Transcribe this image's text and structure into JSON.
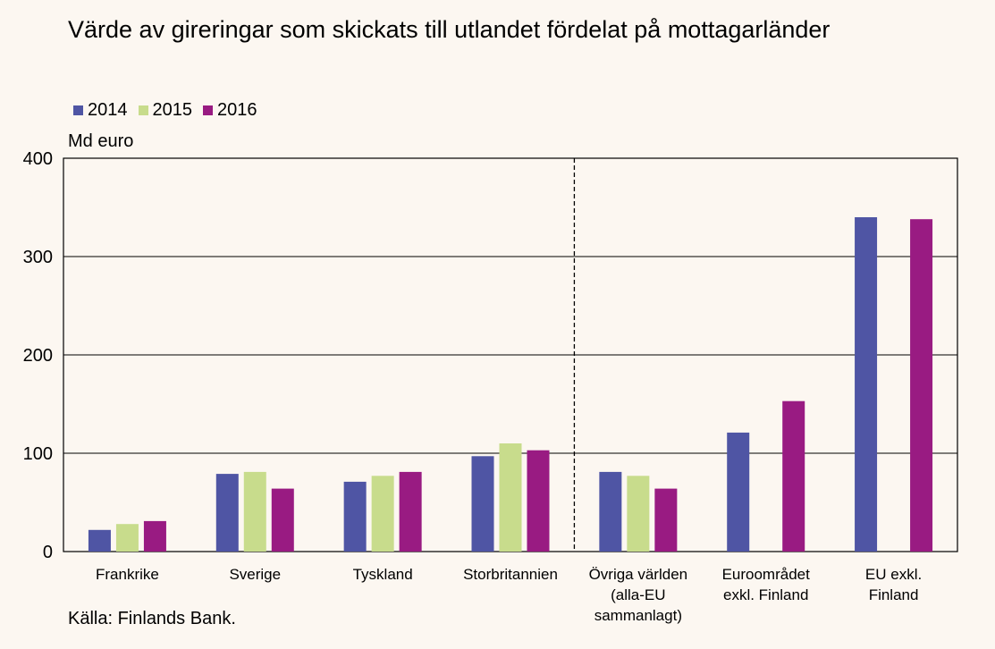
{
  "chart_data": {
    "type": "bar",
    "title": "Värde av gireringar som skickats till utlandet fördelat på mottagarländer",
    "unit_label": "Md euro",
    "source": "Källa: Finlands Bank.",
    "categories": [
      [
        "Frankrike"
      ],
      [
        "Sverige"
      ],
      [
        "Tyskland"
      ],
      [
        "Storbritannien"
      ],
      [
        "Övriga världen",
        "(alla-EU",
        "sammanlagt)"
      ],
      [
        "Euroområdet",
        "exkl. Finland"
      ],
      [
        "EU exkl.",
        "Finland"
      ]
    ],
    "series": [
      {
        "name": "2014",
        "color": "#4f55a4",
        "values": [
          22,
          79,
          71,
          97,
          81,
          121,
          340
        ]
      },
      {
        "name": "2015",
        "color": "#c8dc8c",
        "values": [
          28,
          81,
          77,
          110,
          77,
          null,
          null
        ]
      },
      {
        "name": "2016",
        "color": "#991b82",
        "values": [
          31,
          64,
          81,
          103,
          64,
          153,
          338
        ]
      }
    ],
    "ylim": [
      0,
      400
    ],
    "yticks": [
      0,
      100,
      200,
      300,
      400
    ],
    "grid": true,
    "legend_position": "top-left",
    "separator_after_category": 3
  }
}
